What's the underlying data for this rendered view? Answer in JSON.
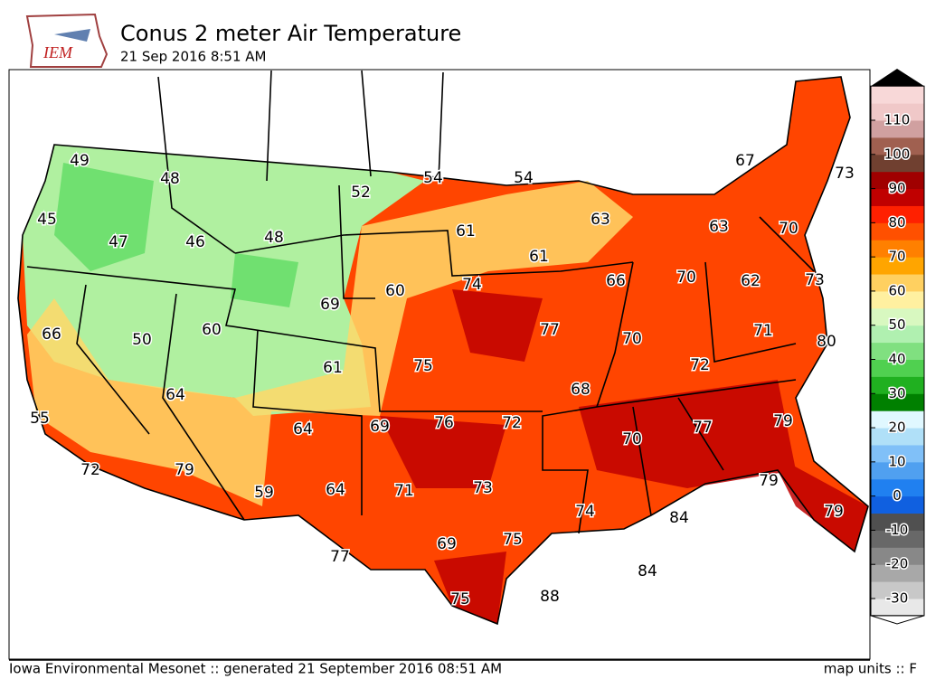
{
  "header": {
    "logo": "IEM",
    "title": "Conus 2 meter Air Temperature",
    "subtitle": "21 Sep 2016 8:51 AM"
  },
  "map": {
    "labels": [
      49,
      48,
      54,
      54,
      52,
      45,
      47,
      46,
      48,
      61,
      63,
      67,
      73,
      63,
      70,
      61,
      74,
      60,
      69,
      66,
      70,
      62,
      73,
      66,
      50,
      60,
      77,
      70,
      71,
      80,
      61,
      75,
      72,
      68,
      64,
      79,
      55,
      69,
      76,
      72,
      64,
      70,
      77,
      72,
      79,
      73,
      71,
      64,
      59,
      79,
      74,
      84,
      79,
      77,
      69,
      75,
      84,
      88,
      75
    ]
  },
  "colorbar": {
    "ticks": [
      110,
      100,
      90,
      80,
      70,
      60,
      50,
      40,
      30,
      20,
      10,
      0,
      -10,
      -20,
      -30
    ]
  },
  "footer": {
    "left": "Iowa Environmental Mesonet :: generated 21 September 2016 08:51 AM",
    "right": "map units :: F"
  }
}
